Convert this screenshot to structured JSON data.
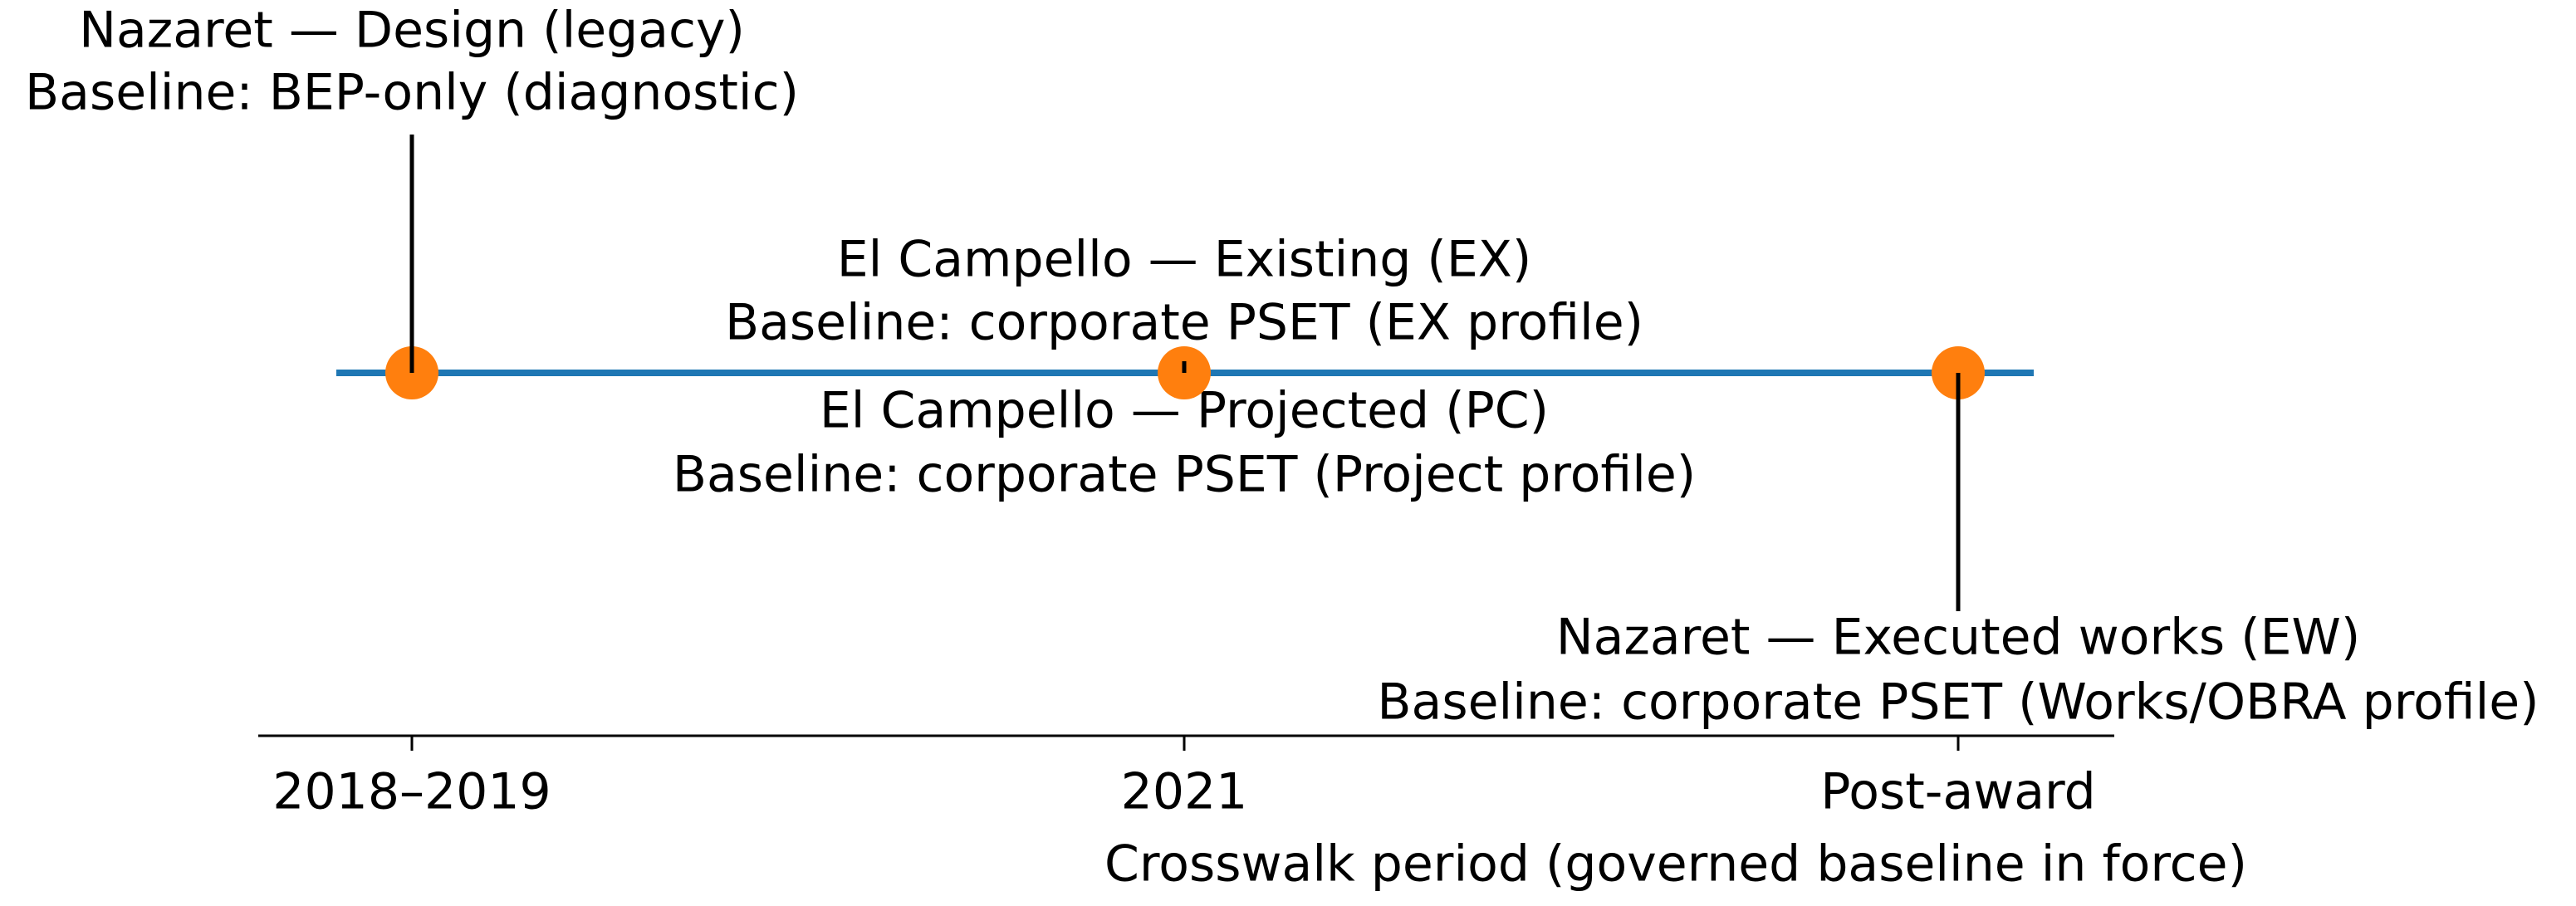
{
  "chart_data": {
    "type": "timeline",
    "xlabel": "Crosswalk period (governed baseline in force)",
    "categories": [
      "2018–2019",
      "2021",
      "Post-award"
    ],
    "events": [
      [
        {
          "title": "Nazaret — Design (legacy)",
          "baseline": "Baseline: BEP-only (diagnostic)"
        }
      ],
      [
        {
          "title": "El Campello — Existing (EX)",
          "baseline": "Baseline: corporate PSET (EX profile)"
        },
        {
          "title": "El Campello — Projected (PC)",
          "baseline": "Baseline: corporate PSET (Project profile)"
        }
      ],
      [
        {
          "title": "Nazaret — Executed works (EW)",
          "baseline": "Baseline: corporate PSET (Works/OBRA profile)"
        }
      ]
    ],
    "line_color": "#1f77b4",
    "marker_color": "#ff7f0e"
  }
}
